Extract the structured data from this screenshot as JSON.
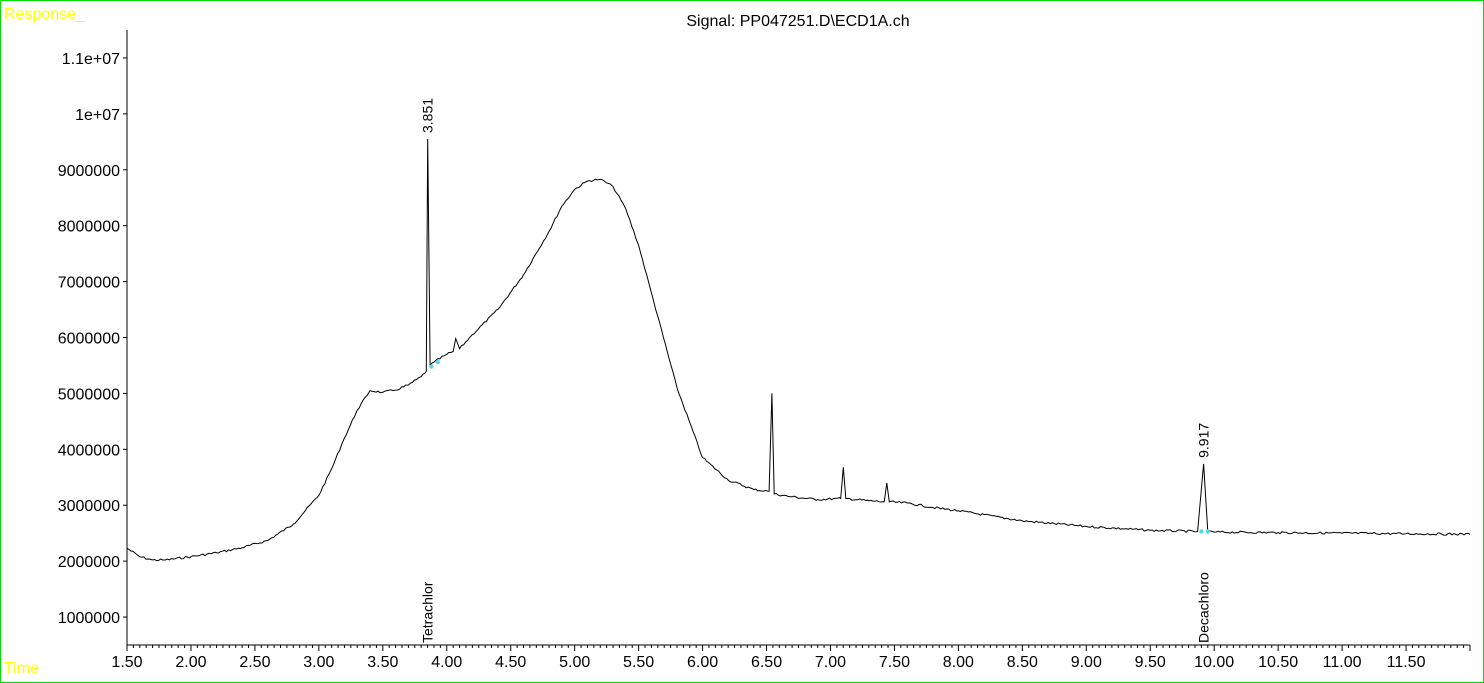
{
  "chart_data": {
    "type": "line",
    "title": "Signal: PP047251.D\\ECD1A.ch",
    "ylabel": "Response_",
    "xlabel": "Time",
    "xlim": [
      1.5,
      12.0
    ],
    "ylim": [
      500000,
      11500000
    ],
    "x_ticks": [
      "1.50",
      "2.00",
      "2.50",
      "3.00",
      "3.50",
      "4.00",
      "4.50",
      "5.00",
      "5.50",
      "6.00",
      "6.50",
      "7.00",
      "7.50",
      "8.00",
      "8.50",
      "9.00",
      "9.50",
      "10.00",
      "10.50",
      "11.00",
      "11.50"
    ],
    "y_ticks": [
      "1000000",
      "2000000",
      "3000000",
      "4000000",
      "5000000",
      "6000000",
      "7000000",
      "8000000",
      "9000000",
      "1e+07",
      "1.1e+07"
    ],
    "series": [
      {
        "color": "#000000",
        "x": [
          1.5,
          1.6,
          1.7,
          1.8,
          2.0,
          2.2,
          2.4,
          2.6,
          2.8,
          3.0,
          3.1,
          3.2,
          3.3,
          3.4,
          3.5,
          3.6,
          3.7,
          3.8,
          3.84,
          3.851,
          3.87,
          3.9,
          4.0,
          4.05,
          4.07,
          4.1,
          4.2,
          4.4,
          4.6,
          4.8,
          4.9,
          5.0,
          5.1,
          5.2,
          5.3,
          5.4,
          5.5,
          5.6,
          5.8,
          6.0,
          6.2,
          6.4,
          6.52,
          6.542,
          6.56,
          6.7,
          6.9,
          7.08,
          7.1,
          7.12,
          7.3,
          7.42,
          7.44,
          7.46,
          7.6,
          7.8,
          8.0,
          8.5,
          9.0,
          9.5,
          9.87,
          9.917,
          9.95,
          10.0,
          10.5,
          11.0,
          11.5,
          12.0
        ],
        "y": [
          2230000,
          2080000,
          2020000,
          2020000,
          2080000,
          2150000,
          2240000,
          2370000,
          2660000,
          3180000,
          3650000,
          4200000,
          4700000,
          5050000,
          5020000,
          5060000,
          5150000,
          5300000,
          5400000,
          9550000,
          5500000,
          5560000,
          5700000,
          5750000,
          5980000,
          5800000,
          6050000,
          6500000,
          7120000,
          7900000,
          8350000,
          8650000,
          8800000,
          8830000,
          8700000,
          8300000,
          7650000,
          6800000,
          5100000,
          3850000,
          3450000,
          3280000,
          3250000,
          5000000,
          3200000,
          3150000,
          3100000,
          3120000,
          3680000,
          3120000,
          3080000,
          3060000,
          3400000,
          3060000,
          3040000,
          2960000,
          2900000,
          2720000,
          2620000,
          2550000,
          2530000,
          3740000,
          2530000,
          2520000,
          2510000,
          2500000,
          2490000,
          2480000
        ]
      }
    ],
    "peak_labels": [
      {
        "x": 3.851,
        "y": 9550000,
        "text": "3.851"
      },
      {
        "x": 9.917,
        "y": 3740000,
        "text": "9.917"
      }
    ],
    "compound_labels": [
      {
        "x": 3.851,
        "text": "Tetrachlor"
      },
      {
        "x": 9.917,
        "text": "Decachloro"
      }
    ],
    "integration_marks": [
      {
        "x": 3.88,
        "y": 5480000
      },
      {
        "x": 3.93,
        "y": 5560000
      },
      {
        "x": 9.9,
        "y": 2530000
      },
      {
        "x": 9.95,
        "y": 2530000
      }
    ],
    "grid": false,
    "colors": {
      "frame": "#00dd00",
      "axis_titles": "#ffff00",
      "trace": "#000000",
      "baseline_marks": "#5bd6e6"
    }
  }
}
